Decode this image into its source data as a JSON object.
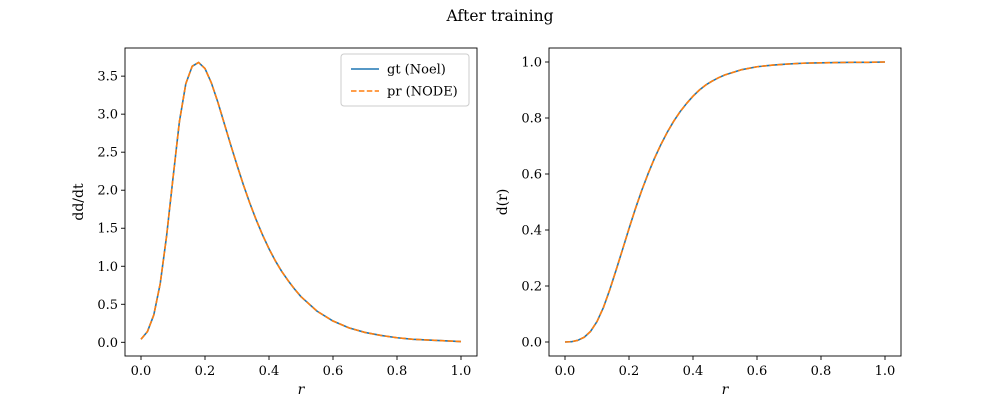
{
  "figure": {
    "suptitle": "After training"
  },
  "colors": {
    "gt": "#1f77b4",
    "pr": "#ff7f0e",
    "axes": "#000000",
    "legend_border": "#cccccc"
  },
  "chart_data": [
    {
      "type": "line",
      "title": "",
      "xlabel": "r",
      "ylabel": "dd/dt",
      "xlim": [
        -0.05,
        1.05
      ],
      "ylim": [
        -0.18,
        3.87
      ],
      "xticks": [
        0.0,
        0.2,
        0.4,
        0.6,
        0.8,
        1.0
      ],
      "xtick_labels": [
        "0.0",
        "0.2",
        "0.4",
        "0.6",
        "0.8",
        "1.0"
      ],
      "yticks": [
        0.0,
        0.5,
        1.0,
        1.5,
        2.0,
        2.5,
        3.0,
        3.5
      ],
      "ytick_labels": [
        "0.0",
        "0.5",
        "1.0",
        "1.5",
        "2.0",
        "2.5",
        "3.0",
        "3.5"
      ],
      "grid": false,
      "legend": {
        "placement": "upper right",
        "entries": [
          "gt (Noel)",
          "pr (NODE)"
        ]
      },
      "x": [
        0.0,
        0.02,
        0.04,
        0.06,
        0.08,
        0.1,
        0.12,
        0.14,
        0.16,
        0.18,
        0.2,
        0.22,
        0.24,
        0.26,
        0.28,
        0.3,
        0.32,
        0.34,
        0.36,
        0.38,
        0.4,
        0.42,
        0.44,
        0.46,
        0.48,
        0.5,
        0.55,
        0.6,
        0.65,
        0.7,
        0.75,
        0.8,
        0.85,
        0.9,
        0.95,
        1.0
      ],
      "series": [
        {
          "name": "gt (Noel)",
          "style": "solid",
          "values": [
            0.04,
            0.14,
            0.36,
            0.77,
            1.4,
            2.16,
            2.9,
            3.4,
            3.63,
            3.68,
            3.6,
            3.41,
            3.16,
            2.88,
            2.6,
            2.33,
            2.07,
            1.83,
            1.61,
            1.41,
            1.23,
            1.07,
            0.93,
            0.81,
            0.7,
            0.6,
            0.41,
            0.28,
            0.19,
            0.13,
            0.09,
            0.06,
            0.04,
            0.03,
            0.02,
            0.01
          ]
        },
        {
          "name": "pr (NODE)",
          "style": "dashed",
          "values": [
            0.04,
            0.14,
            0.36,
            0.77,
            1.4,
            2.16,
            2.9,
            3.4,
            3.63,
            3.68,
            3.6,
            3.41,
            3.16,
            2.88,
            2.6,
            2.33,
            2.07,
            1.83,
            1.61,
            1.41,
            1.23,
            1.07,
            0.93,
            0.81,
            0.7,
            0.6,
            0.41,
            0.28,
            0.19,
            0.13,
            0.09,
            0.06,
            0.04,
            0.03,
            0.02,
            0.01
          ]
        }
      ]
    },
    {
      "type": "line",
      "title": "",
      "xlabel": "r",
      "ylabel": "d(r)",
      "xlim": [
        -0.05,
        1.05
      ],
      "ylim": [
        -0.05,
        1.05
      ],
      "xticks": [
        0.0,
        0.2,
        0.4,
        0.6,
        0.8,
        1.0
      ],
      "xtick_labels": [
        "0.0",
        "0.2",
        "0.4",
        "0.6",
        "0.8",
        "1.0"
      ],
      "yticks": [
        0.0,
        0.2,
        0.4,
        0.6,
        0.8,
        1.0
      ],
      "ytick_labels": [
        "0.0",
        "0.2",
        "0.4",
        "0.6",
        "0.8",
        "1.0"
      ],
      "grid": false,
      "legend": null,
      "x": [
        0.0,
        0.02,
        0.04,
        0.06,
        0.08,
        0.1,
        0.12,
        0.14,
        0.16,
        0.18,
        0.2,
        0.22,
        0.24,
        0.26,
        0.28,
        0.3,
        0.32,
        0.34,
        0.36,
        0.38,
        0.4,
        0.42,
        0.44,
        0.46,
        0.48,
        0.5,
        0.55,
        0.6,
        0.65,
        0.7,
        0.75,
        0.8,
        0.85,
        0.9,
        0.95,
        1.0
      ],
      "series": [
        {
          "style": "solid",
          "values": [
            0.0,
            0.001,
            0.006,
            0.017,
            0.038,
            0.073,
            0.123,
            0.187,
            0.258,
            0.331,
            0.405,
            0.476,
            0.542,
            0.602,
            0.657,
            0.706,
            0.75,
            0.789,
            0.823,
            0.852,
            0.878,
            0.9,
            0.918,
            0.932,
            0.944,
            0.954,
            0.972,
            0.983,
            0.989,
            0.993,
            0.996,
            0.997,
            0.998,
            0.999,
            0.999,
            1.0
          ]
        },
        {
          "style": "dashed",
          "values": [
            0.0,
            0.001,
            0.006,
            0.017,
            0.038,
            0.073,
            0.123,
            0.187,
            0.258,
            0.331,
            0.405,
            0.476,
            0.542,
            0.602,
            0.657,
            0.706,
            0.75,
            0.789,
            0.823,
            0.852,
            0.878,
            0.9,
            0.918,
            0.932,
            0.944,
            0.954,
            0.972,
            0.983,
            0.989,
            0.993,
            0.996,
            0.997,
            0.998,
            0.999,
            0.999,
            1.0
          ]
        }
      ]
    }
  ]
}
